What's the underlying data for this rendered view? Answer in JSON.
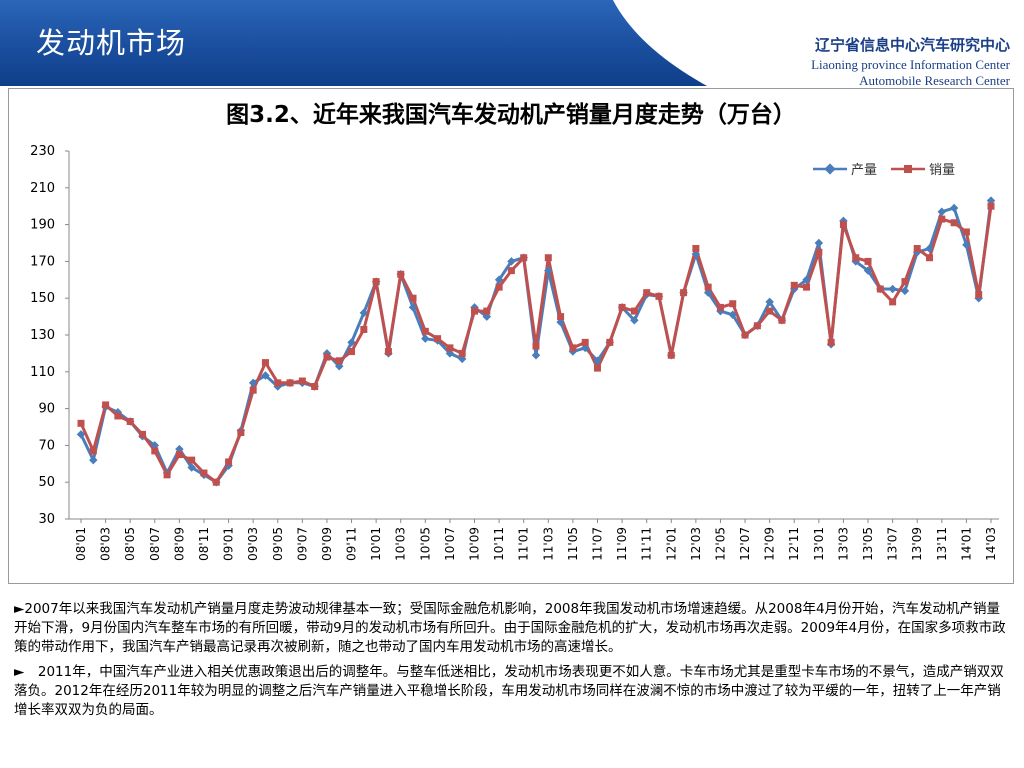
{
  "header": {
    "title": "发动机市场",
    "logo_cn": "辽宁省信息中心汽车研究中心",
    "logo_en_line1": "Liaoning province Information Center",
    "logo_en_line2": "Automobile Research Center"
  },
  "colors": {
    "header_blue": "#1a4e9e",
    "production": "#4a7ebb",
    "sales": "#c0504d"
  },
  "chart_data": {
    "type": "line",
    "title": "图3.2、近年来我国汽车发动机产销量月度走势（万台）",
    "ylim": [
      30,
      230
    ],
    "yticks": [
      30,
      50,
      70,
      90,
      110,
      130,
      150,
      170,
      190,
      210,
      230
    ],
    "legend_position": "top-right",
    "grid": false,
    "xtick_labels": [
      "08'01",
      "08'03",
      "08'05",
      "08'07",
      "08'09",
      "08'11",
      "09'01",
      "09'03",
      "09'05",
      "09'07",
      "09'09",
      "09'11",
      "10'01",
      "10'03",
      "10'05",
      "10'07",
      "10'09",
      "10'11",
      "11'01",
      "11'03",
      "11'05",
      "11'07",
      "11'09",
      "11'11",
      "12'01",
      "12'03",
      "12'05",
      "12'07",
      "12'09",
      "12'11",
      "13'01",
      "13'03",
      "13'05",
      "13'07",
      "13'09",
      "13'11",
      "14'01",
      "14'03"
    ],
    "x": [
      "08'01",
      "08'02",
      "08'03",
      "08'04",
      "08'05",
      "08'06",
      "08'07",
      "08'08",
      "08'09",
      "08'10",
      "08'11",
      "08'12",
      "09'01",
      "09'02",
      "09'03",
      "09'04",
      "09'05",
      "09'06",
      "09'07",
      "09'08",
      "09'09",
      "09'10",
      "09'11",
      "09'12",
      "10'01",
      "10'02",
      "10'03",
      "10'04",
      "10'05",
      "10'06",
      "10'07",
      "10'08",
      "10'09",
      "10'10",
      "10'11",
      "10'12",
      "11'01",
      "11'02",
      "11'03",
      "11'04",
      "11'05",
      "11'06",
      "11'07",
      "11'08",
      "11'09",
      "11'10",
      "11'11",
      "11'12",
      "12'01",
      "12'02",
      "12'03",
      "12'04",
      "12'05",
      "12'06",
      "12'07",
      "12'08",
      "12'09",
      "12'10",
      "12'11",
      "12'12",
      "13'01",
      "13'02",
      "13'03",
      "13'04",
      "13'05",
      "13'06",
      "13'07",
      "13'08",
      "13'09",
      "13'10",
      "13'11",
      "13'12",
      "14'01",
      "14'02",
      "14'03"
    ],
    "series": [
      {
        "name": "产量",
        "values": [
          76,
          62,
          91,
          88,
          83,
          75,
          70,
          55,
          68,
          58,
          54,
          50,
          59,
          78,
          104,
          108,
          102,
          104,
          104,
          102,
          120,
          113,
          126,
          142,
          159,
          120,
          163,
          145,
          128,
          127,
          120,
          117,
          145,
          140,
          160,
          170,
          172,
          119,
          165,
          137,
          121,
          123,
          116,
          126,
          145,
          138,
          152,
          151,
          119,
          153,
          174,
          153,
          143,
          141,
          130,
          135,
          148,
          138,
          155,
          160,
          180,
          125,
          192,
          170,
          165,
          155,
          155,
          154,
          175,
          177,
          197,
          199,
          179,
          150,
          203
        ]
      },
      {
        "name": "销量",
        "values": [
          82,
          67,
          92,
          86,
          83,
          76,
          67,
          54,
          65,
          62,
          55,
          50,
          61,
          77,
          100,
          115,
          104,
          104,
          105,
          102,
          118,
          116,
          121,
          133,
          159,
          121,
          163,
          150,
          132,
          128,
          123,
          120,
          143,
          143,
          156,
          165,
          172,
          124,
          172,
          140,
          123,
          126,
          112,
          126,
          145,
          143,
          153,
          151,
          119,
          153,
          177,
          156,
          145,
          147,
          130,
          135,
          143,
          138,
          157,
          156,
          175,
          126,
          190,
          172,
          170,
          155,
          148,
          159,
          177,
          172,
          193,
          191,
          186,
          152,
          200
        ]
      }
    ]
  },
  "body": {
    "para1": "►2007年以来我国汽车发动机产销量月度走势波动规律基本一致；受国际金融危机影响，2008年我国发动机市场增速趋缓。从2008年4月份开始，汽车发动机产销量开始下滑，9月份国内汽车整车市场的有所回暖，带动9月的发动机市场有所回升。由于国际金融危机的扩大，发动机市场再次走弱。2009年4月份，在国家多项救市政策的带动作用下，我国汽车产销最高记录再次被刷新，随之也带动了国内车用发动机市场的高速增长。",
    "para2": "►　2011年，中国汽车产业进入相关优惠政策退出后的调整年。与整车低迷相比，发动机市场表现更不如人意。卡车市场尤其是重型卡车市场的不景气，造成产销双双落负。2012年在经历2011年较为明显的调整之后汽车产销量进入平稳增长阶段，车用发动机市场同样在波澜不惊的市场中渡过了较为平缓的一年，扭转了上一年产销增长率双双为负的局面。"
  }
}
